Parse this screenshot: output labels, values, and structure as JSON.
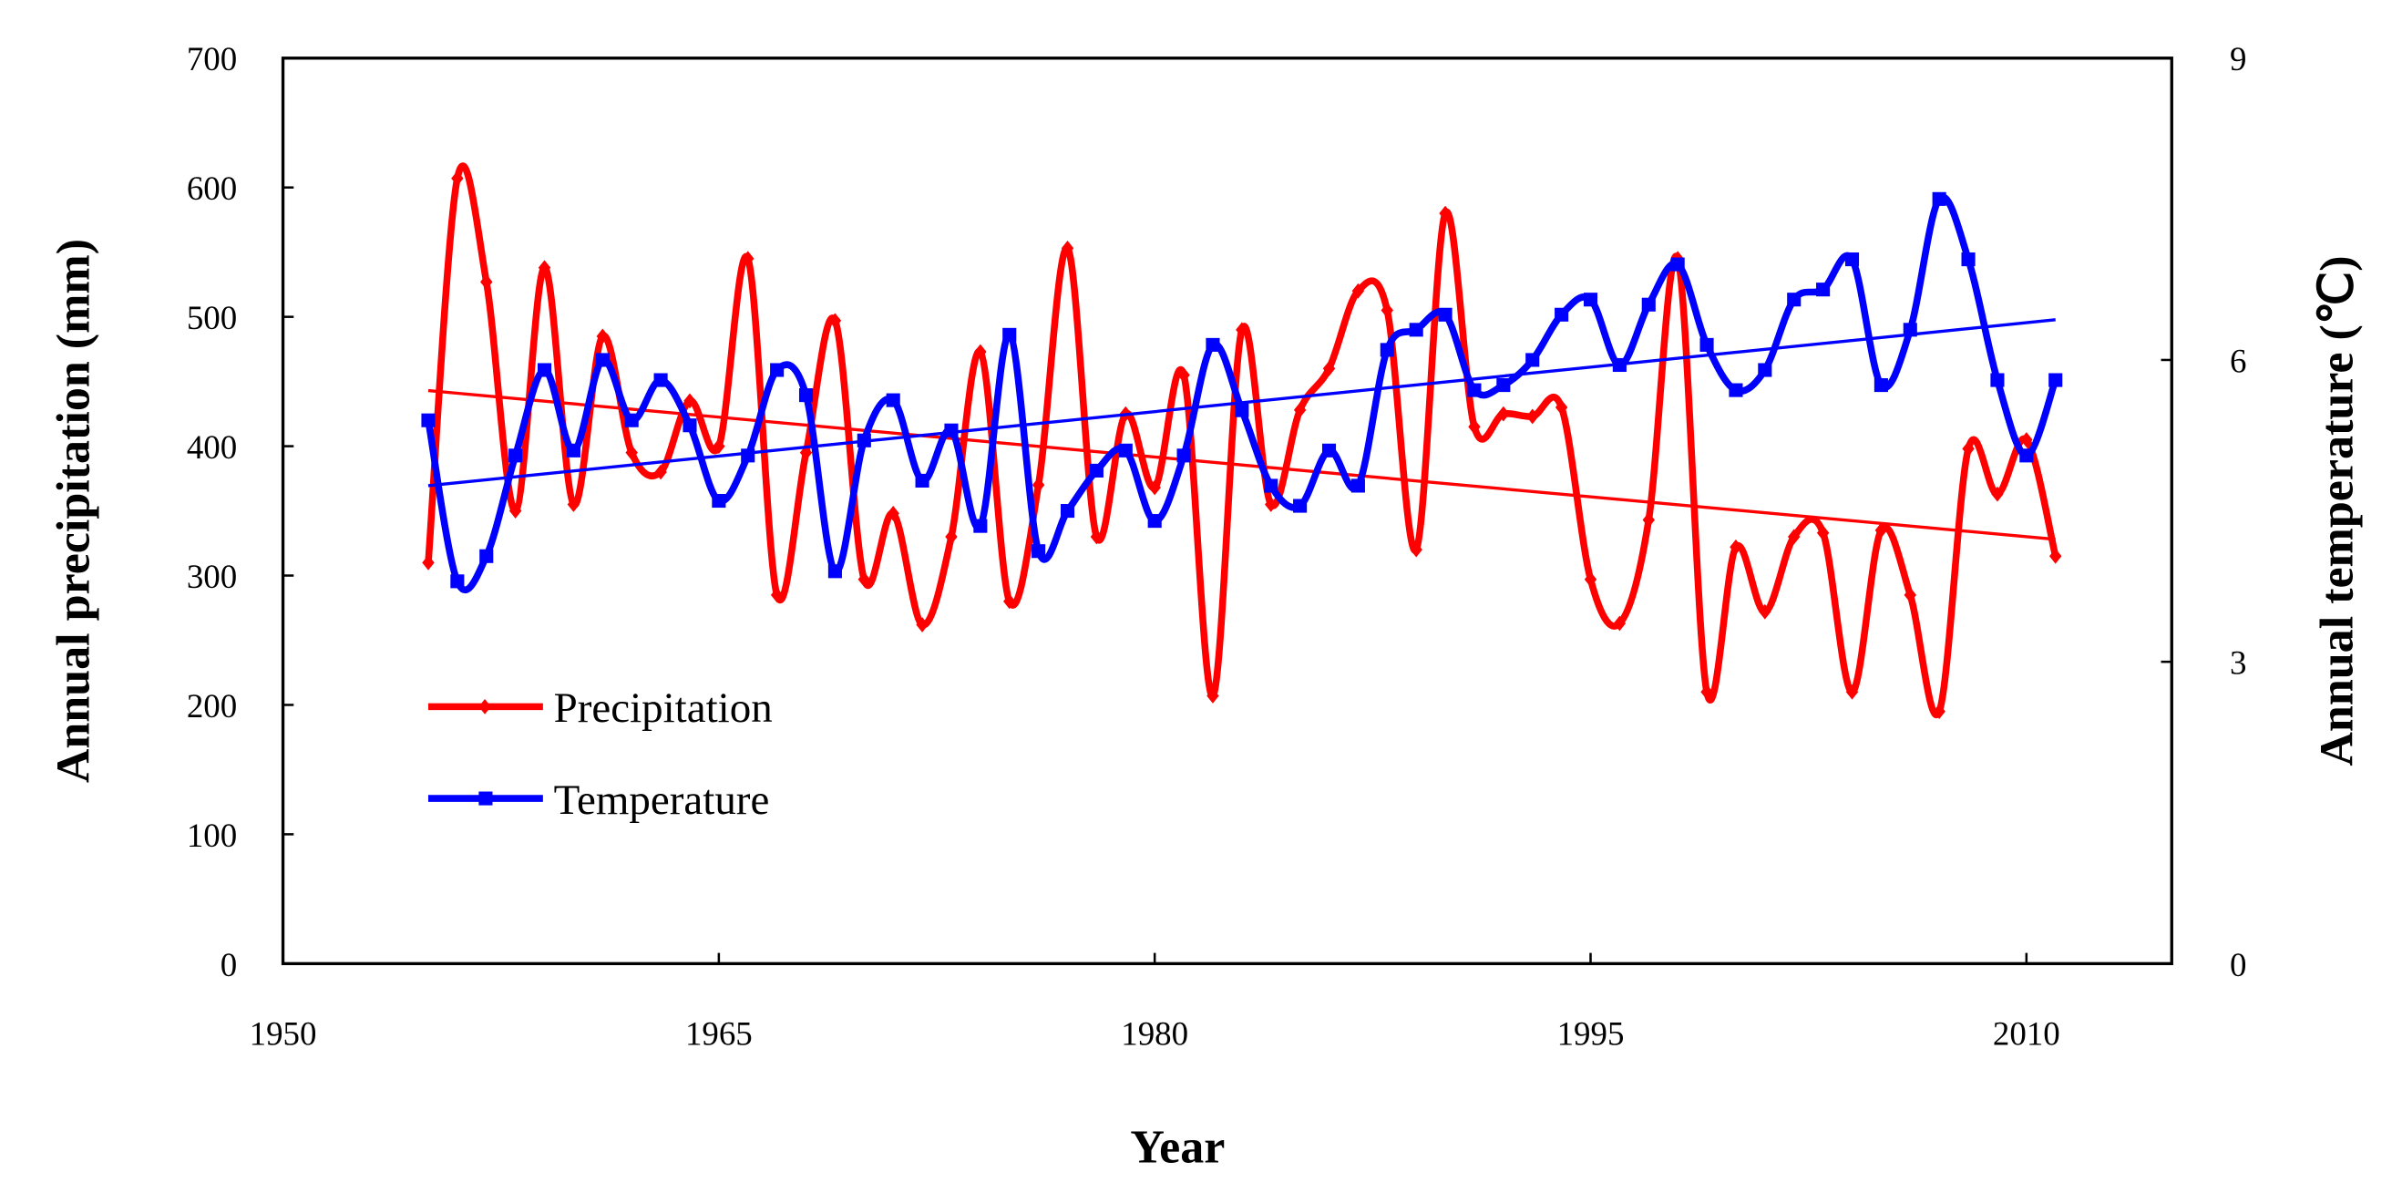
{
  "chart_data": {
    "type": "line",
    "x_label": "Year",
    "y_label": "Annual precipitation (mm)",
    "y2_label": "Annual temperature (℃)",
    "x": [
      1955,
      1956,
      1957,
      1958,
      1959,
      1960,
      1961,
      1962,
      1963,
      1964,
      1965,
      1966,
      1967,
      1968,
      1969,
      1970,
      1971,
      1972,
      1973,
      1974,
      1975,
      1976,
      1977,
      1978,
      1979,
      1980,
      1981,
      1982,
      1983,
      1984,
      1985,
      1986,
      1987,
      1988,
      1989,
      1990,
      1991,
      1992,
      1993,
      1994,
      1995,
      1996,
      1997,
      1998,
      1999,
      2000,
      2001,
      2002,
      2003,
      2004,
      2005,
      2006,
      2007,
      2008,
      2009,
      2010,
      2011
    ],
    "series": [
      {
        "name": "Precipitation",
        "color": "#ff0000",
        "marker": "diamond",
        "values": [
          310,
          607,
          527,
          350,
          538,
          355,
          485,
          395,
          380,
          435,
          400,
          545,
          285,
          395,
          497,
          297,
          348,
          262,
          330,
          473,
          280,
          370,
          553,
          330,
          425,
          368,
          455,
          207,
          490,
          355,
          428,
          460,
          520,
          505,
          320,
          580,
          415,
          425,
          423,
          430,
          297,
          263,
          343,
          545,
          210,
          322,
          272,
          330,
          333,
          210,
          335,
          285,
          195,
          398,
          363,
          405,
          315
        ],
        "trend": {
          "x": [
            1955,
            2011
          ],
          "values": [
            443,
            328
          ]
        }
      },
      {
        "name": "Temperature",
        "color": "#0000ff",
        "marker": "square",
        "axis": "y2",
        "values": [
          5.4,
          3.8,
          4.05,
          5.05,
          5.9,
          5.1,
          6.0,
          5.4,
          5.8,
          5.35,
          4.6,
          5.05,
          5.9,
          5.65,
          3.9,
          5.2,
          5.6,
          4.8,
          5.3,
          4.35,
          6.25,
          4.1,
          4.5,
          4.9,
          5.1,
          4.4,
          5.05,
          6.15,
          5.5,
          4.75,
          4.55,
          5.1,
          4.75,
          6.1,
          6.3,
          6.45,
          5.7,
          5.75,
          6.0,
          6.45,
          6.6,
          5.95,
          6.55,
          6.95,
          6.15,
          5.7,
          5.9,
          6.6,
          6.7,
          7.0,
          5.75,
          6.3,
          7.6,
          7.0,
          5.8,
          5.05,
          5.8
        ],
        "trend": {
          "x": [
            1955,
            2011
          ],
          "values": [
            4.75,
            6.4
          ]
        }
      }
    ],
    "xlim": [
      1950,
      2015
    ],
    "xticks": [
      1950,
      1965,
      1980,
      1995,
      2010
    ],
    "ylim": [
      0,
      700
    ],
    "yticks": [
      0,
      100,
      200,
      300,
      400,
      500,
      600,
      700
    ],
    "y2lim": [
      0,
      9
    ],
    "y2ticks": [
      0,
      3,
      6,
      9
    ],
    "grid": false,
    "legend": "lower left"
  }
}
